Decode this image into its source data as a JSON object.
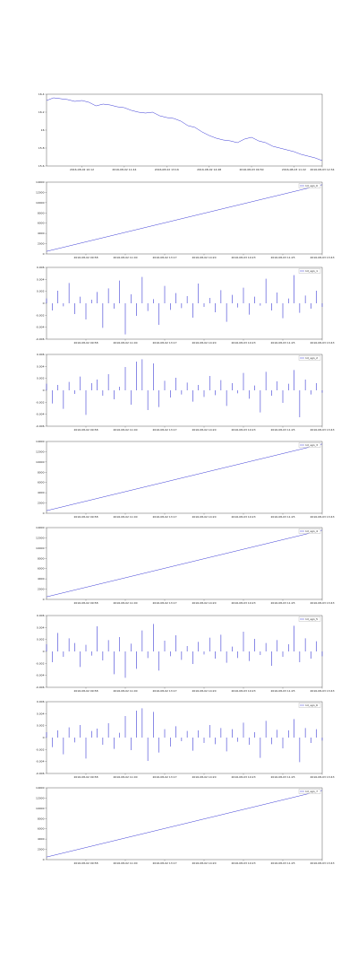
{
  "chart_data": [
    {
      "type": "line",
      "x": [
        0,
        1,
        2,
        3,
        4,
        5,
        6,
        7,
        8,
        9,
        10,
        11,
        12,
        13,
        14,
        15,
        16,
        17,
        18,
        19,
        20,
        21,
        22,
        23,
        24,
        25,
        26,
        27,
        28,
        29,
        30,
        31,
        32,
        33,
        34,
        35,
        36,
        37,
        38,
        39
      ],
      "xlim": [
        0,
        39
      ],
      "xticks": [
        {
          "value": 5,
          "label": "2016-08-02 10:12"
        },
        {
          "value": 11,
          "label": "2016-08-02 11:44"
        },
        {
          "value": 17,
          "label": "2016-08-02 13:16"
        },
        {
          "value": 23,
          "label": "2016-08-02 14:48"
        },
        {
          "value": 29,
          "label": "2016-08-03 09:50"
        },
        {
          "value": 35,
          "label": "2016-08-03 11:22"
        },
        {
          "value": 39,
          "label": "2016-08-03 12:34"
        }
      ],
      "ylim": [
        15.6,
        16.4
      ],
      "yticks": [
        15.6,
        15.8,
        16.0,
        16.2,
        16.4
      ],
      "series": [
        {
          "color": "#3b3bd6",
          "values": [
            16.33,
            16.36,
            16.35,
            16.34,
            16.32,
            16.33,
            16.31,
            16.27,
            16.29,
            16.28,
            16.26,
            16.25,
            16.22,
            16.2,
            16.19,
            16.2,
            16.16,
            16.14,
            16.13,
            16.1,
            16.05,
            16.03,
            15.98,
            15.94,
            15.91,
            15.89,
            15.88,
            15.86,
            15.9,
            15.92,
            15.88,
            15.86,
            15.82,
            15.8,
            15.78,
            15.76,
            15.73,
            15.71,
            15.69,
            15.66
          ]
        }
      ]
    },
    {
      "type": "line",
      "x": [
        0,
        49
      ],
      "xlim": [
        0,
        49
      ],
      "legend": "upper right",
      "xticks": [
        {
          "value": 7,
          "label": "2016-08-02 09:58"
        },
        {
          "value": 14,
          "label": "2016-08-02 11:00"
        },
        {
          "value": 21,
          "label": "2016-08-02 13:17"
        },
        {
          "value": 28,
          "label": "2016-08-02 14:20"
        },
        {
          "value": 35,
          "label": "2016-08-03 10:23"
        },
        {
          "value": 42,
          "label": "2016-08-03 11:25"
        },
        {
          "value": 49,
          "label": "2016-08-03 13:43"
        }
      ],
      "ylim": [
        0,
        14000
      ],
      "yticks": [
        0,
        2000,
        4000,
        6000,
        8000,
        10000,
        12000,
        14000
      ],
      "series": [
        {
          "name": "1d_sgn_0",
          "color": "#3b3bd6",
          "values": [
            500,
            13500
          ]
        }
      ]
    },
    {
      "type": "spike",
      "x": [
        0,
        1,
        2,
        3,
        4,
        5,
        6,
        7,
        8,
        9,
        10,
        11,
        12,
        13,
        14,
        15,
        16,
        17,
        18,
        19,
        20,
        21,
        22,
        23,
        24,
        25,
        26,
        27,
        28,
        29,
        30,
        31,
        32,
        33,
        34,
        35,
        36,
        37,
        38,
        39,
        40,
        41,
        42,
        43,
        44,
        45,
        46,
        47,
        48,
        49
      ],
      "xlim": [
        0,
        49
      ],
      "legend": "upper right",
      "xticks": [
        {
          "value": 7,
          "label": "2016-08-02 09:58"
        },
        {
          "value": 14,
          "label": "2016-08-02 11:00"
        },
        {
          "value": 21,
          "label": "2016-08-02 13:17"
        },
        {
          "value": 28,
          "label": "2016-08-02 14:20"
        },
        {
          "value": 35,
          "label": "2016-08-03 10:23"
        },
        {
          "value": 42,
          "label": "2016-08-03 11:25"
        },
        {
          "value": 49,
          "label": "2016-08-03 13:43"
        }
      ],
      "ylim": [
        -0.006,
        0.006
      ],
      "yticks": [
        -0.006,
        -0.004,
        -0.002,
        0,
        0.002,
        0.004,
        0.006
      ],
      "series": [
        {
          "name": "1d_sgn_1",
          "color": "#3b3bd6",
          "values": [
            0.0008,
            -0.0012,
            0.0021,
            -0.0005,
            0.0034,
            -0.0018,
            0.0011,
            -0.0027,
            0.0006,
            0.0019,
            -0.0041,
            0.0025,
            -0.0009,
            0.0038,
            -0.0052,
            0.0015,
            -0.0021,
            0.0044,
            -0.0013,
            0.0007,
            -0.0036,
            0.0029,
            -0.0011,
            0.0017,
            -0.0008,
            0.0012,
            -0.0024,
            0.0033,
            -0.0006,
            0.0009,
            -0.0015,
            0.0022,
            -0.0031,
            0.0014,
            -0.0007,
            0.0026,
            -0.0019,
            0.0011,
            -0.0004,
            0.0041,
            -0.0012,
            0.0018,
            -0.0025,
            0.0008,
            0.0047,
            -0.0016,
            0.0013,
            -0.0009,
            0.0021,
            -0.0006
          ]
        }
      ]
    },
    {
      "type": "spike",
      "x": [
        0,
        1,
        2,
        3,
        4,
        5,
        6,
        7,
        8,
        9,
        10,
        11,
        12,
        13,
        14,
        15,
        16,
        17,
        18,
        19,
        20,
        21,
        22,
        23,
        24,
        25,
        26,
        27,
        28,
        29,
        30,
        31,
        32,
        33,
        34,
        35,
        36,
        37,
        38,
        39,
        40,
        41,
        42,
        43,
        44,
        45,
        46,
        47,
        48,
        49
      ],
      "xlim": [
        0,
        49
      ],
      "legend": "upper right",
      "xticks": [
        {
          "value": 7,
          "label": "2016-08-02 09:58"
        },
        {
          "value": 14,
          "label": "2016-08-02 11:00"
        },
        {
          "value": 21,
          "label": "2016-08-02 13:17"
        },
        {
          "value": 28,
          "label": "2016-08-02 14:20"
        },
        {
          "value": 35,
          "label": "2016-08-03 10:23"
        },
        {
          "value": 42,
          "label": "2016-08-03 11:25"
        },
        {
          "value": 49,
          "label": "2016-08-03 13:43"
        }
      ],
      "ylim": [
        -0.006,
        0.006
      ],
      "yticks": [
        -0.006,
        -0.004,
        -0.002,
        0,
        0.002,
        0.004,
        0.006
      ],
      "series": [
        {
          "name": "1d_sgn_2",
          "color": "#3b3bd6",
          "values": [
            0.0011,
            -0.0022,
            0.0009,
            -0.0031,
            0.0014,
            -0.0006,
            0.0023,
            -0.0041,
            0.0012,
            0.0018,
            -0.0009,
            0.0027,
            -0.0015,
            0.0006,
            0.0039,
            -0.0024,
            0.0048,
            0.0052,
            -0.0033,
            0.0045,
            -0.0028,
            0.0016,
            -0.0012,
            0.0021,
            -0.0007,
            0.0013,
            -0.0019,
            0.0009,
            -0.0011,
            0.0024,
            -0.0008,
            0.0017,
            -0.0026,
            0.0012,
            -0.0005,
            0.0029,
            -0.0014,
            0.0008,
            -0.0037,
            0.0031,
            -0.0009,
            0.0015,
            -0.0021,
            0.0011,
            0.0034,
            -0.0045,
            0.0018,
            -0.0007,
            0.0012,
            -0.0004
          ]
        }
      ]
    },
    {
      "type": "line",
      "x": [
        0,
        49
      ],
      "xlim": [
        0,
        49
      ],
      "legend": "upper right",
      "xticks": [
        {
          "value": 7,
          "label": "2016-08-02 09:58"
        },
        {
          "value": 14,
          "label": "2016-08-02 11:00"
        },
        {
          "value": 21,
          "label": "2016-08-02 13:17"
        },
        {
          "value": 28,
          "label": "2016-08-02 14:20"
        },
        {
          "value": 35,
          "label": "2016-08-03 10:23"
        },
        {
          "value": 42,
          "label": "2016-08-03 11:25"
        },
        {
          "value": 49,
          "label": "2016-08-03 13:43"
        }
      ],
      "ylim": [
        0,
        14000
      ],
      "yticks": [
        0,
        2000,
        4000,
        6000,
        8000,
        10000,
        12000,
        14000
      ],
      "series": [
        {
          "name": "1d_sgn_3",
          "color": "#3b3bd6",
          "values": [
            500,
            13500
          ]
        }
      ]
    },
    {
      "type": "line",
      "x": [
        0,
        49
      ],
      "xlim": [
        0,
        49
      ],
      "legend": "upper right",
      "xticks": [
        {
          "value": 7,
          "label": "2016-08-02 09:58"
        },
        {
          "value": 14,
          "label": "2016-08-02 11:00"
        },
        {
          "value": 21,
          "label": "2016-08-02 13:17"
        },
        {
          "value": 28,
          "label": "2016-08-02 14:20"
        },
        {
          "value": 35,
          "label": "2016-08-03 10:23"
        },
        {
          "value": 42,
          "label": "2016-08-03 11:25"
        },
        {
          "value": 49,
          "label": "2016-08-03 13:43"
        }
      ],
      "ylim": [
        0,
        14000
      ],
      "yticks": [
        0,
        2000,
        4000,
        6000,
        8000,
        10000,
        12000,
        14000
      ],
      "series": [
        {
          "name": "1d_sgn_4",
          "color": "#3b3bd6",
          "values": [
            500,
            13500
          ]
        }
      ]
    },
    {
      "type": "spike",
      "x": [
        0,
        1,
        2,
        3,
        4,
        5,
        6,
        7,
        8,
        9,
        10,
        11,
        12,
        13,
        14,
        15,
        16,
        17,
        18,
        19,
        20,
        21,
        22,
        23,
        24,
        25,
        26,
        27,
        28,
        29,
        30,
        31,
        32,
        33,
        34,
        35,
        36,
        37,
        38,
        39,
        40,
        41,
        42,
        43,
        44,
        45,
        46,
        47,
        48,
        49
      ],
      "xlim": [
        0,
        49
      ],
      "legend": "upper right",
      "xticks": [
        {
          "value": 7,
          "label": "2016-08-02 09:58"
        },
        {
          "value": 14,
          "label": "2016-08-02 11:00"
        },
        {
          "value": 21,
          "label": "2016-08-02 13:17"
        },
        {
          "value": 28,
          "label": "2016-08-02 14:20"
        },
        {
          "value": 35,
          "label": "2016-08-03 10:23"
        },
        {
          "value": 42,
          "label": "2016-08-03 11:25"
        },
        {
          "value": 49,
          "label": "2016-08-03 13:43"
        }
      ],
      "ylim": [
        -0.006,
        0.006
      ],
      "yticks": [
        -0.006,
        -0.004,
        -0.002,
        0,
        0.002,
        0.004,
        0.006
      ],
      "series": [
        {
          "name": "1d_sgn_5",
          "color": "#3b3bd6",
          "values": [
            0.0012,
            -0.0018,
            0.0031,
            -0.0009,
            0.0022,
            0.0014,
            -0.0026,
            0.0011,
            -0.0007,
            0.0042,
            -0.0015,
            0.0019,
            -0.0038,
            0.0024,
            -0.0044,
            0.0013,
            -0.0029,
            0.0035,
            -0.0011,
            0.0046,
            -0.0032,
            0.0018,
            -0.0008,
            0.0027,
            -0.0014,
            0.0009,
            -0.0021,
            0.0016,
            -0.0005,
            0.0023,
            -0.0012,
            0.0028,
            -0.0019,
            0.0008,
            -0.0011,
            0.0033,
            -0.0016,
            0.0021,
            -0.0006,
            0.0014,
            -0.0024,
            0.0019,
            -0.0009,
            0.0012,
            0.0043,
            -0.0018,
            0.0022,
            -0.0012,
            0.0017,
            -0.0008
          ]
        }
      ]
    },
    {
      "type": "spike",
      "x": [
        0,
        1,
        2,
        3,
        4,
        5,
        6,
        7,
        8,
        9,
        10,
        11,
        12,
        13,
        14,
        15,
        16,
        17,
        18,
        19,
        20,
        21,
        22,
        23,
        24,
        25,
        26,
        27,
        28,
        29,
        30,
        31,
        32,
        33,
        34,
        35,
        36,
        37,
        38,
        39,
        40,
        41,
        42,
        43,
        44,
        45,
        46,
        47,
        48,
        49
      ],
      "xlim": [
        0,
        49
      ],
      "legend": "upper right",
      "xticks": [
        {
          "value": 7,
          "label": "2016-08-02 09:58"
        },
        {
          "value": 14,
          "label": "2016-08-02 11:00"
        },
        {
          "value": 21,
          "label": "2016-08-02 13:17"
        },
        {
          "value": 28,
          "label": "2016-08-02 14:20"
        },
        {
          "value": 35,
          "label": "2016-08-03 10:23"
        },
        {
          "value": 42,
          "label": "2016-08-03 11:25"
        },
        {
          "value": 49,
          "label": "2016-08-03 13:43"
        }
      ],
      "ylim": [
        -0.006,
        0.006
      ],
      "yticks": [
        -0.006,
        -0.004,
        -0.002,
        0,
        0.002,
        0.004,
        0.006
      ],
      "series": [
        {
          "name": "1d_sgn_6",
          "color": "#3b3bd6",
          "values": [
            0.0009,
            -0.0016,
            0.0012,
            -0.0028,
            0.0017,
            -0.0008,
            0.0021,
            -0.0035,
            0.0011,
            0.0015,
            -0.0012,
            0.0024,
            -0.0019,
            0.0008,
            0.0036,
            -0.0021,
            0.0045,
            0.0049,
            -0.0039,
            0.0043,
            -0.0025,
            0.0014,
            -0.0015,
            0.0019,
            -0.0006,
            0.0011,
            -0.0022,
            0.0012,
            -0.0009,
            0.0021,
            -0.0011,
            0.0016,
            -0.0023,
            0.0014,
            -0.0007,
            0.0025,
            -0.0012,
            0.0009,
            -0.0034,
            0.0028,
            -0.0011,
            0.0013,
            -0.0018,
            0.0012,
            0.0031,
            -0.0041,
            0.0016,
            -0.0009,
            0.0014,
            -0.0005
          ]
        }
      ]
    },
    {
      "type": "line",
      "x": [
        0,
        49
      ],
      "xlim": [
        0,
        49
      ],
      "legend": "upper right",
      "xticks": [
        {
          "value": 7,
          "label": "2016-08-02 09:58"
        },
        {
          "value": 14,
          "label": "2016-08-02 11:00"
        },
        {
          "value": 21,
          "label": "2016-08-02 13:17"
        },
        {
          "value": 28,
          "label": "2016-08-02 14:20"
        },
        {
          "value": 35,
          "label": "2016-08-03 10:23"
        },
        {
          "value": 42,
          "label": "2016-08-03 11:25"
        },
        {
          "value": 49,
          "label": "2016-08-03 13:43"
        }
      ],
      "ylim": [
        0,
        14000
      ],
      "yticks": [
        0,
        2000,
        4000,
        6000,
        8000,
        10000,
        12000,
        14000
      ],
      "series": [
        {
          "name": "1d_sgn_7",
          "color": "#3b3bd6",
          "values": [
            500,
            13500
          ]
        }
      ]
    }
  ]
}
